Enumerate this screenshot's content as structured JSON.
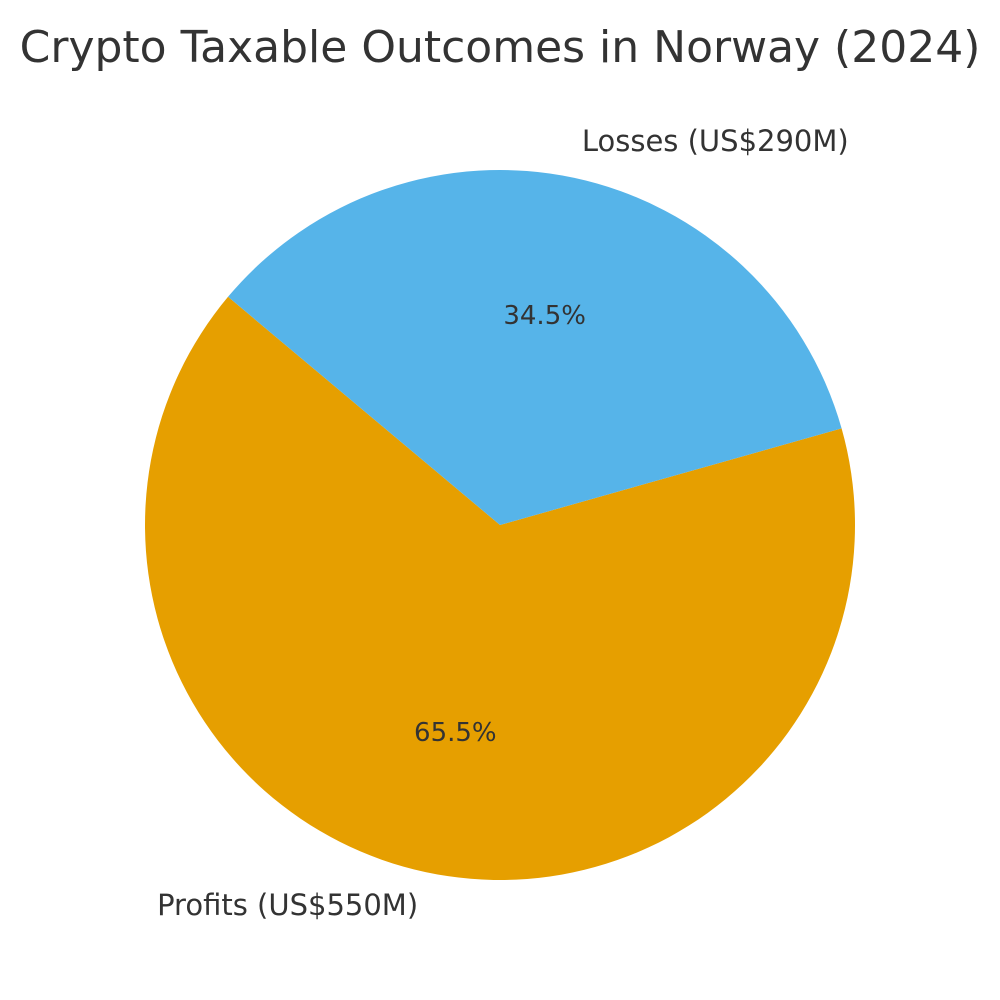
{
  "chart_data": {
    "type": "pie",
    "title": "Crypto Taxable Outcomes in Norway (2024)",
    "categories": [
      "Profits (US$550M)",
      "Losses (US$290M)"
    ],
    "values": [
      65.5,
      34.5
    ],
    "value_labels": [
      "65.5%",
      "34.5%"
    ],
    "colors": [
      "#E69F00",
      "#56B4E9"
    ]
  }
}
